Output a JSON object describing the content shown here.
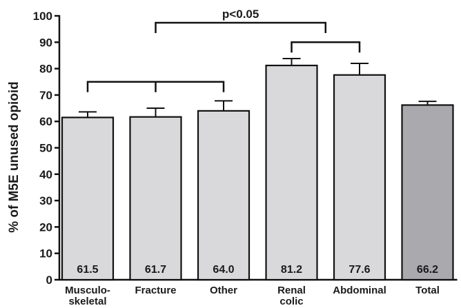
{
  "chart_data": {
    "type": "bar",
    "ylabel": "% of M5E unused opioid",
    "ylim": [
      0,
      100
    ],
    "yticks": [
      0,
      10,
      20,
      30,
      40,
      50,
      60,
      70,
      80,
      90,
      100
    ],
    "categories": [
      [
        "Musculo-",
        "skeletal"
      ],
      [
        "Fracture"
      ],
      [
        "Other"
      ],
      [
        "Renal",
        "colic"
      ],
      [
        "Abdominal"
      ],
      [
        "Total"
      ]
    ],
    "values": [
      61.5,
      61.7,
      64.0,
      81.2,
      77.6,
      66.2
    ],
    "value_labels": [
      "61.5",
      "61.7",
      "64.0",
      "81.2",
      "77.6",
      "66.2"
    ],
    "error_upper": [
      63.6,
      65.0,
      67.8,
      83.8,
      82.0,
      67.6
    ],
    "bar_colors": [
      "#d9d9db",
      "#d9d9db",
      "#d9d9db",
      "#d9d9db",
      "#d9d9db",
      "#a9a9ae"
    ],
    "brackets": [
      {
        "from": 0,
        "to": 2,
        "y": 75,
        "mid": 1,
        "label": ""
      },
      {
        "from": 3,
        "to": 4,
        "y": 90,
        "mid": null,
        "label": ""
      },
      {
        "from": 1,
        "to": 3.5,
        "y": 100,
        "mid": null,
        "label": "p<0.05"
      }
    ],
    "grid": false,
    "legend": "none"
  }
}
